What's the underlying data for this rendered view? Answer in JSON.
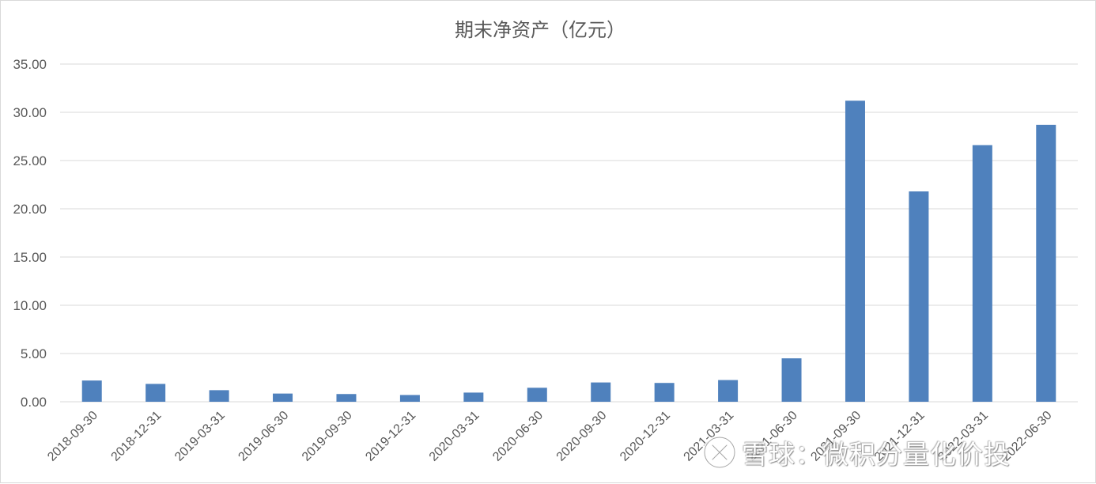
{
  "chart_data": {
    "type": "bar",
    "title": "期末净资产（亿元）",
    "categories": [
      "2018-09-30",
      "2018-12-31",
      "2019-03-31",
      "2019-06-30",
      "2019-09-30",
      "2019-12-31",
      "2020-03-31",
      "2020-06-30",
      "2020-09-30",
      "2020-12-31",
      "2021-03-31",
      "2021-06-30",
      "2021-09-30",
      "2021-12-31",
      "2022-03-31",
      "2022-06-30"
    ],
    "values": [
      2.2,
      1.85,
      1.2,
      0.85,
      0.8,
      0.7,
      0.95,
      1.45,
      2.0,
      1.95,
      2.25,
      4.5,
      31.2,
      21.8,
      26.6,
      28.7
    ],
    "yticks": [
      "0.00",
      "5.00",
      "10.00",
      "15.00",
      "20.00",
      "25.00",
      "30.00",
      "35.00"
    ],
    "ylim": [
      0,
      35
    ],
    "grid": true,
    "bar_color": "#4f81bd"
  },
  "watermark": {
    "text": "雪球：微积分量化价投",
    "icon": "snowball-logo-icon"
  }
}
